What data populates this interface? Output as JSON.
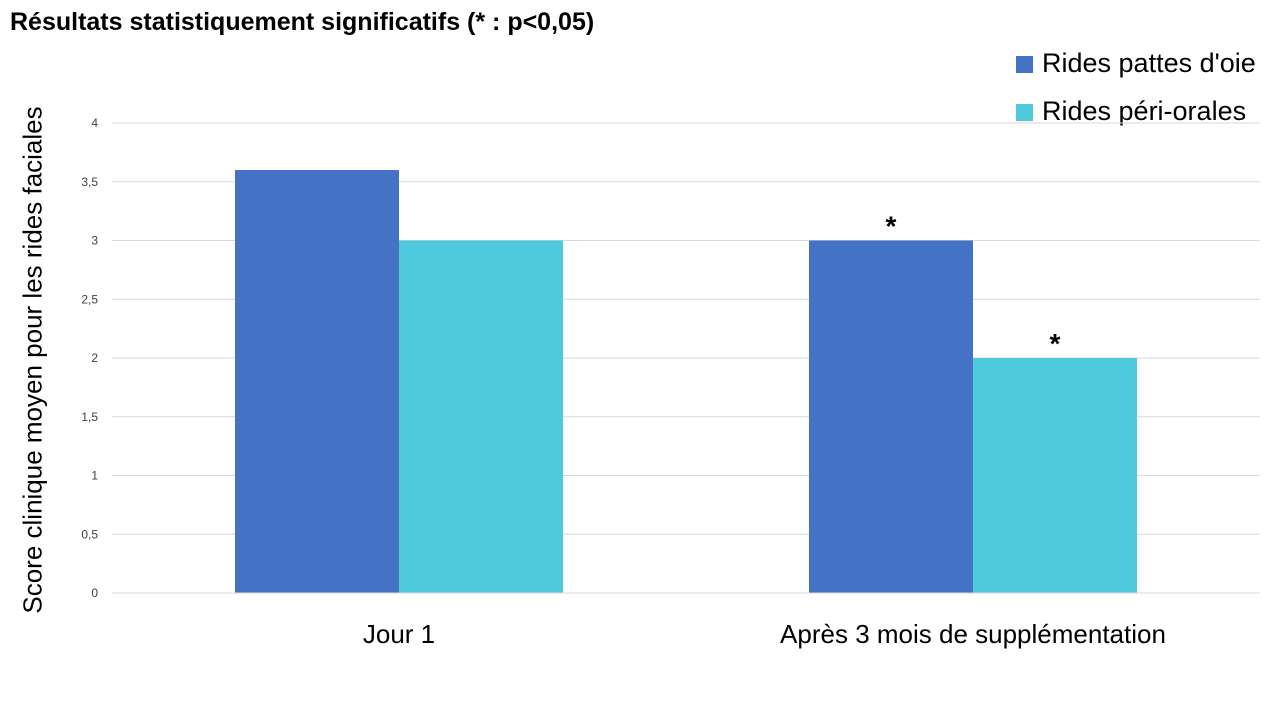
{
  "chart_data": {
    "type": "bar",
    "title": "Résultats statistiquement significatifs (* : p<0,05)",
    "xlabel": "",
    "ylabel": "Score clinique moyen pour les rides faciales",
    "categories": [
      "Jour 1",
      "Après 3 mois de supplémentation"
    ],
    "series": [
      {
        "name": "Rides pattes d'oie",
        "values": [
          3.6,
          3.0
        ],
        "color": "#4472C4",
        "annotations": [
          "",
          "*"
        ]
      },
      {
        "name": "Rides péri-orales",
        "values": [
          3.0,
          2.0
        ],
        "color": "#4FC9DC",
        "annotations": [
          "",
          "*"
        ]
      }
    ],
    "ylim": [
      0,
      4
    ],
    "yticks": [
      "0",
      "0,5",
      "1",
      "1,5",
      "2",
      "2,5",
      "3",
      "3,5",
      "4"
    ],
    "grid": true,
    "legend_position": "top-right"
  }
}
